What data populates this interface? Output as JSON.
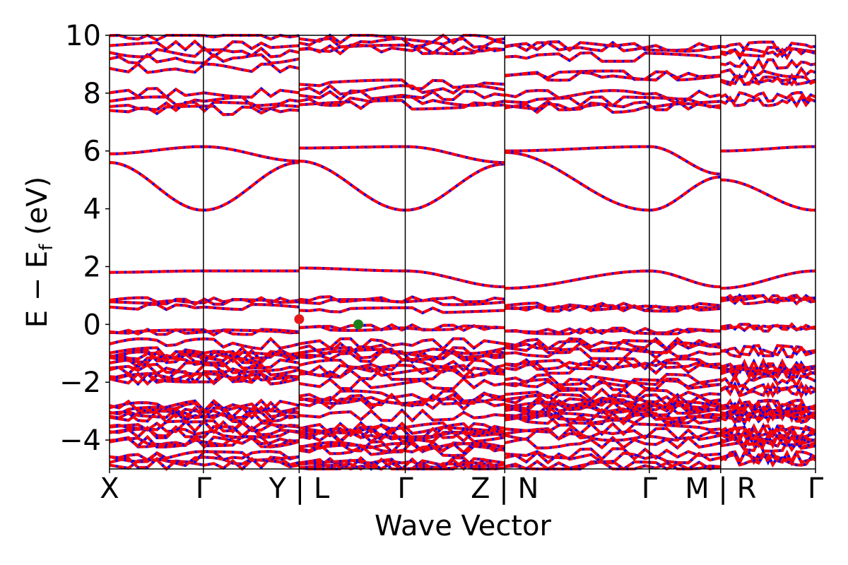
{
  "chart_data": {
    "type": "line",
    "title": "",
    "xlabel": "Wave Vector",
    "ylabel_parts": {
      "pre": "E − E",
      "sub": "f",
      "post": " (eV)"
    },
    "ylim": [
      -5,
      10
    ],
    "yticks": [
      10,
      8,
      6,
      4,
      2,
      0,
      -2,
      -4
    ],
    "ytick_labels": [
      "10",
      "8",
      "6",
      "4",
      "2",
      "0",
      "−2",
      "−4"
    ],
    "grid": false,
    "legend": "none",
    "kpath_labels": [
      "X",
      "Γ",
      "Y | L",
      "Γ",
      "Z | N",
      "Γ",
      "M | R",
      "Γ"
    ],
    "kpath_positions": [
      0,
      1.0,
      2.02,
      3.15,
      4.21,
      5.75,
      6.51,
      7.52
    ],
    "series_colors": {
      "band_dashed_primary": "#ff0000",
      "band_dashed_secondary": "#0000ff"
    },
    "markers": [
      {
        "name": "valence band maximum",
        "k": 2.02,
        "energy": 0.18,
        "color": "#e41a1c"
      },
      {
        "name": "conduction band minimum",
        "k": 2.65,
        "energy": 0.0,
        "color": "#1a7f1a"
      }
    ],
    "bands_conduction_sample": [
      {
        "k": [
          0,
          1.0,
          2.02
        ],
        "energy": [
          5.6,
          3.95,
          5.6
        ]
      },
      {
        "k": [
          0,
          1.0,
          2.02
        ],
        "energy": [
          5.9,
          6.15,
          5.65
        ]
      },
      {
        "k": [
          2.02,
          3.15,
          4.21
        ],
        "energy": [
          5.65,
          3.95,
          5.55
        ]
      },
      {
        "k": [
          2.02,
          3.15,
          4.21
        ],
        "energy": [
          6.1,
          6.15,
          5.6
        ]
      },
      {
        "k": [
          4.21,
          5.75,
          6.51
        ],
        "energy": [
          5.95,
          3.95,
          5.1
        ]
      },
      {
        "k": [
          4.21,
          5.75,
          6.51
        ],
        "energy": [
          6.0,
          6.15,
          5.2
        ]
      },
      {
        "k": [
          6.51,
          7.52
        ],
        "energy": [
          5.0,
          3.95
        ]
      },
      {
        "k": [
          6.51,
          7.52
        ],
        "energy": [
          6.0,
          6.15
        ]
      },
      {
        "k": [
          0,
          1.0,
          2.02
        ],
        "energy": [
          1.8,
          1.85,
          1.85
        ]
      },
      {
        "k": [
          2.02,
          3.15,
          4.21
        ],
        "energy": [
          1.95,
          1.85,
          1.3
        ]
      },
      {
        "k": [
          4.21,
          5.75,
          6.51
        ],
        "energy": [
          1.25,
          1.85,
          1.3
        ]
      },
      {
        "k": [
          6.51,
          7.52
        ],
        "energy": [
          1.25,
          1.85
        ]
      }
    ]
  }
}
